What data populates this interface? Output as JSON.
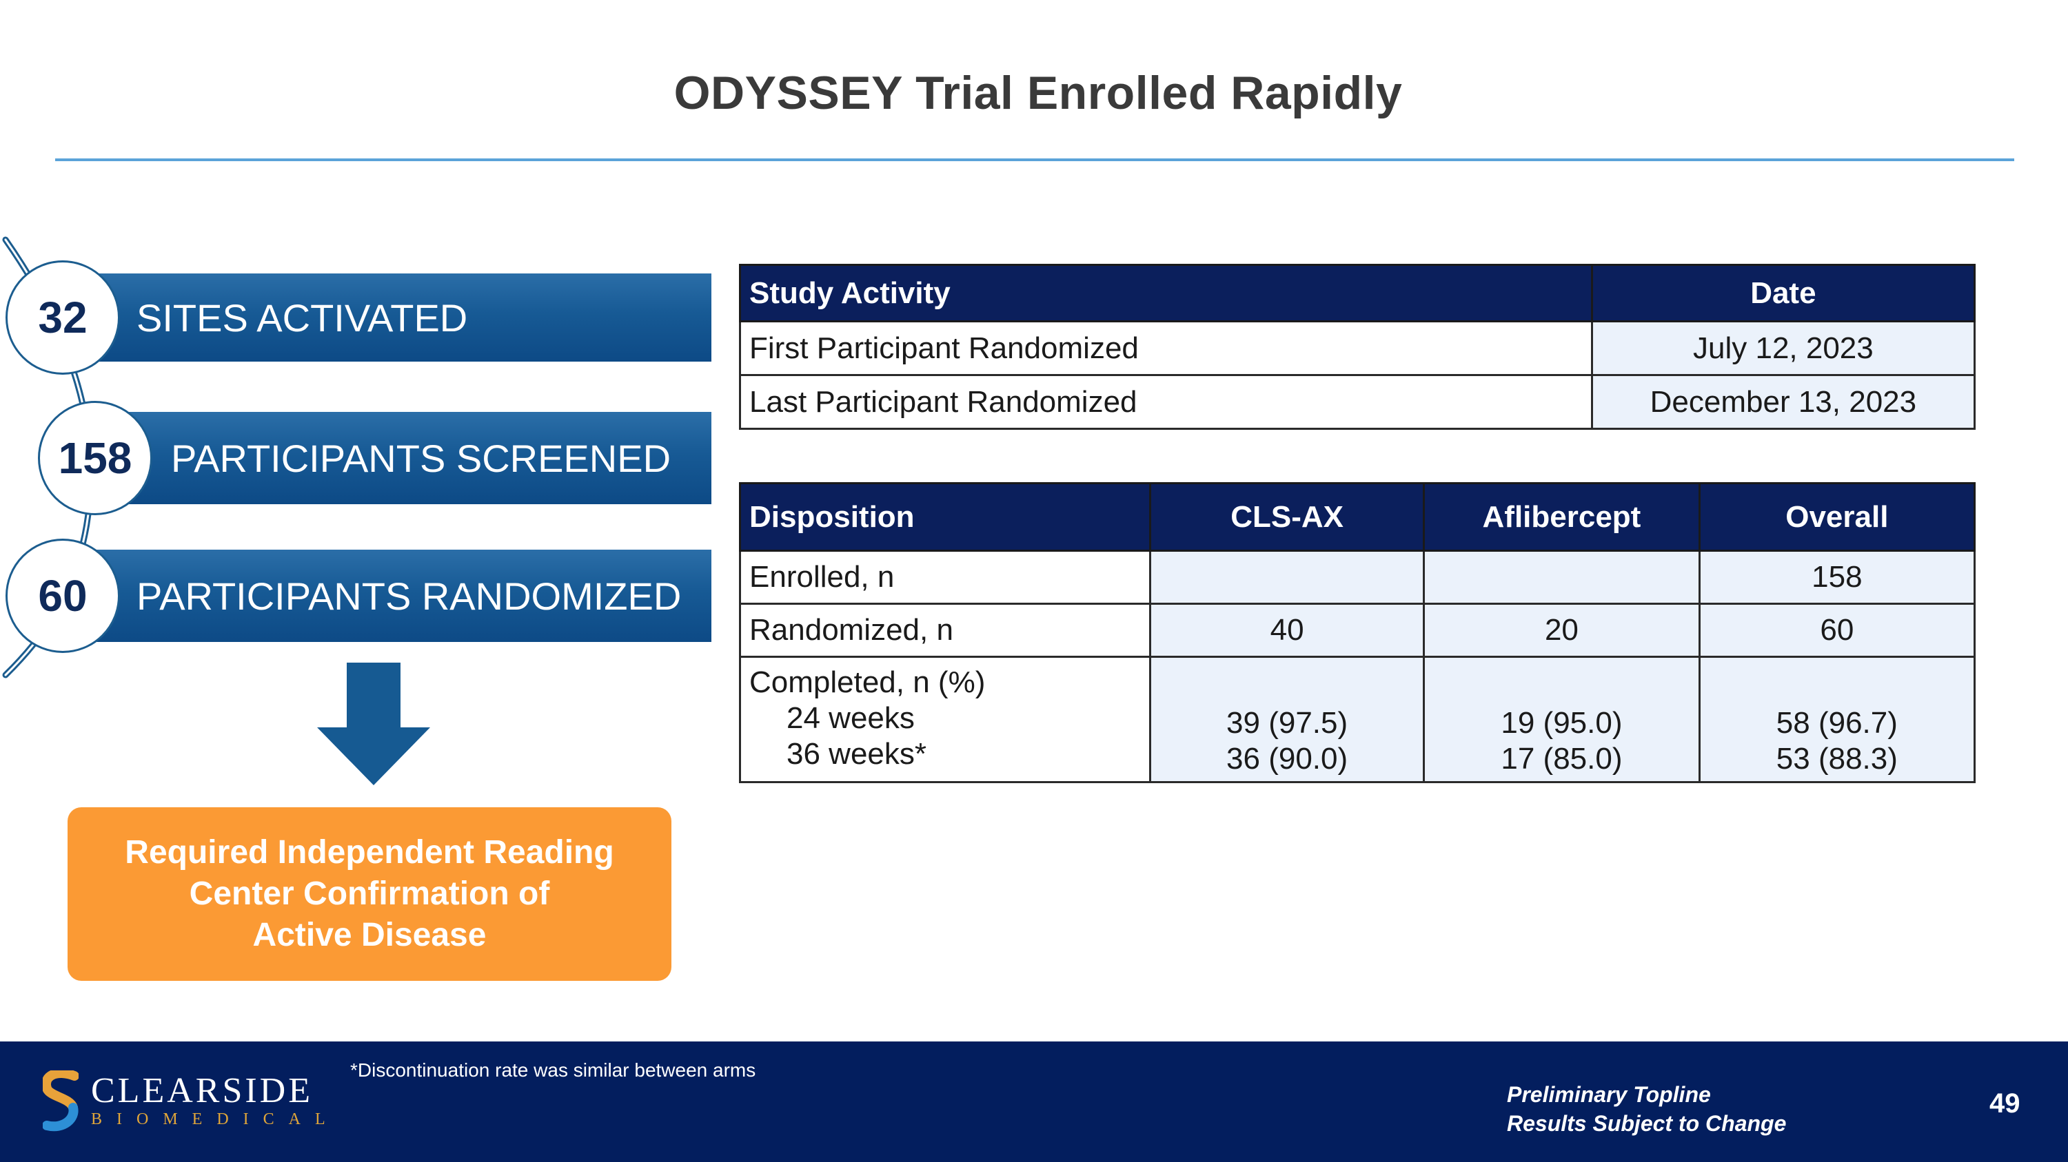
{
  "title": "ODYSSEY Trial Enrolled Rapidly",
  "funnel": [
    {
      "number": "32",
      "label": "SITES ACTIVATED"
    },
    {
      "number": "158",
      "label": "PARTICIPANTS SCREENED"
    },
    {
      "number": "60",
      "label": "PARTICIPANTS RANDOMIZED"
    }
  ],
  "callout": {
    "line1": "Required Independent Reading",
    "line2": "Center Confirmation of",
    "line3": "Active Disease"
  },
  "study_table": {
    "headers": [
      "Study Activity",
      "Date"
    ],
    "rows": [
      [
        "First Participant Randomized",
        "July 12, 2023"
      ],
      [
        "Last Participant Randomized",
        "December 13, 2023"
      ]
    ]
  },
  "disposition_table": {
    "headers": [
      "Disposition",
      "CLS-AX",
      "Aflibercept",
      "Overall"
    ],
    "enrolled": {
      "label": "Enrolled, n",
      "cls": "",
      "afl": "",
      "overall": "158"
    },
    "randomized": {
      "label": "Randomized, n",
      "cls": "40",
      "afl": "20",
      "overall": "60"
    },
    "completed": {
      "label": "Completed, n (%)",
      "w24": {
        "label": "24 weeks",
        "cls": "39 (97.5)",
        "afl": "19 (95.0)",
        "overall": "58 (96.7)"
      },
      "w36": {
        "label": "36 weeks*",
        "cls": "36 (90.0)",
        "afl": "17 (85.0)",
        "overall": "53 (88.3)"
      }
    }
  },
  "footer": {
    "footnote": "*Discontinuation rate was similar between arms",
    "logo_name": "CLEARSIDE",
    "logo_sub": "BIOMEDICAL",
    "prelim_line1": "Preliminary Topline",
    "prelim_line2": "Results Subject to Change",
    "page_number": "49"
  },
  "colors": {
    "navy": "#0b1f5c",
    "bar_blue": "#175a95",
    "orange": "#fb9a34",
    "rule_blue": "#5ba3d9",
    "cell_tint": "#ebf2fb"
  }
}
